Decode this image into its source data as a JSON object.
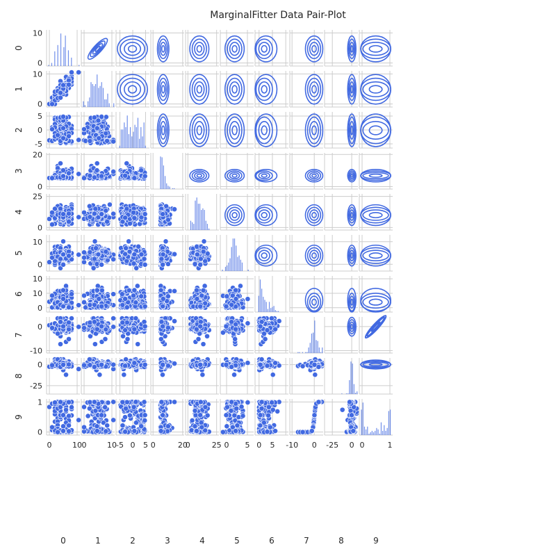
{
  "chart_data": {
    "type": "scatter",
    "title": "MarginalFitter Data Pair-Plot",
    "variables": [
      "0",
      "1",
      "2",
      "3",
      "4",
      "5",
      "6",
      "7",
      "8",
      "9"
    ],
    "lower_triangle": "scatter",
    "diagonal": "histogram",
    "upper_triangle": "kde-contour",
    "color": "#4169e1",
    "grid": true,
    "axes": [
      {
        "name": "0",
        "range": [
          -1,
          11
        ],
        "ticks": [
          0,
          10
        ]
      },
      {
        "name": "1",
        "range": [
          -1,
          11
        ],
        "ticks": [
          0,
          10
        ]
      },
      {
        "name": "2",
        "range": [
          -6.5,
          6.5
        ],
        "ticks": [
          -5,
          0,
          5
        ]
      },
      {
        "name": "3",
        "range": [
          -1.5,
          21
        ],
        "ticks": [
          0,
          20
        ]
      },
      {
        "name": "4",
        "range": [
          -2,
          27
        ],
        "ticks": [
          0,
          25
        ]
      },
      {
        "name": "5",
        "range": [
          -3,
          13
        ],
        "ticks": [
          0,
          10
        ]
      },
      {
        "name": "6",
        "range": [
          -1.5,
          11
        ],
        "ticks": [
          0,
          5,
          10
        ]
      },
      {
        "name": "7",
        "range": [
          -11,
          4
        ],
        "ticks": [
          -10,
          0
        ]
      },
      {
        "name": "8",
        "range": [
          -35,
          8
        ],
        "ticks": [
          -25,
          0
        ]
      },
      {
        "name": "9",
        "range": [
          -0.1,
          1.1
        ],
        "ticks": [
          0,
          1
        ]
      }
    ],
    "row_tick_labels": [
      [
        "0",
        "10"
      ],
      [
        "0",
        "10"
      ],
      [
        "-5",
        "0",
        "5"
      ],
      [
        "0",
        "20"
      ],
      [
        "0",
        "25"
      ],
      [
        "0",
        "10"
      ],
      [
        "0",
        "10"
      ],
      [
        "-10",
        "0"
      ],
      [
        "-25",
        "0"
      ],
      [
        "0",
        "1"
      ]
    ],
    "column_tick_labels": [
      [
        "0",
        "10"
      ],
      [
        "0",
        "10"
      ],
      [
        "-5",
        "0",
        "5"
      ],
      [
        "0",
        "20"
      ],
      [
        "0",
        "25"
      ],
      [
        "0",
        "5",
        "10"
      ],
      [
        "0",
        "5"
      ],
      [
        "-10",
        "0"
      ],
      [
        "-25",
        "0"
      ],
      [
        "0",
        "1"
      ]
    ],
    "marginals": [
      {
        "name": "0",
        "center": 4,
        "spread": 2,
        "shape": "discrete-skewed"
      },
      {
        "name": "1",
        "center": 4,
        "spread": 2,
        "shape": "discrete-skewed"
      },
      {
        "name": "2",
        "center": 0,
        "spread": 3,
        "shape": "uniform"
      },
      {
        "name": "3",
        "center": 6,
        "spread": 2.5,
        "shape": "skewed"
      },
      {
        "name": "4",
        "center": 10,
        "spread": 3.5,
        "shape": "normal"
      },
      {
        "name": "5",
        "center": 4,
        "spread": 2,
        "shape": "normal"
      },
      {
        "name": "6",
        "center": 1.5,
        "spread": 1.5,
        "shape": "exponential"
      },
      {
        "name": "7",
        "center": 0,
        "spread": 1.2,
        "shape": "heavy-tailed"
      },
      {
        "name": "8",
        "center": 0,
        "spread": 1.5,
        "shape": "heavy-tailed"
      },
      {
        "name": "9",
        "center": 0.5,
        "spread": 0.3,
        "shape": "uniform"
      }
    ],
    "relationships": [
      {
        "x": "0",
        "y": "1",
        "relation": "positive-linear"
      },
      {
        "x": "7",
        "y": "9",
        "relation": "sigmoid"
      }
    ]
  }
}
